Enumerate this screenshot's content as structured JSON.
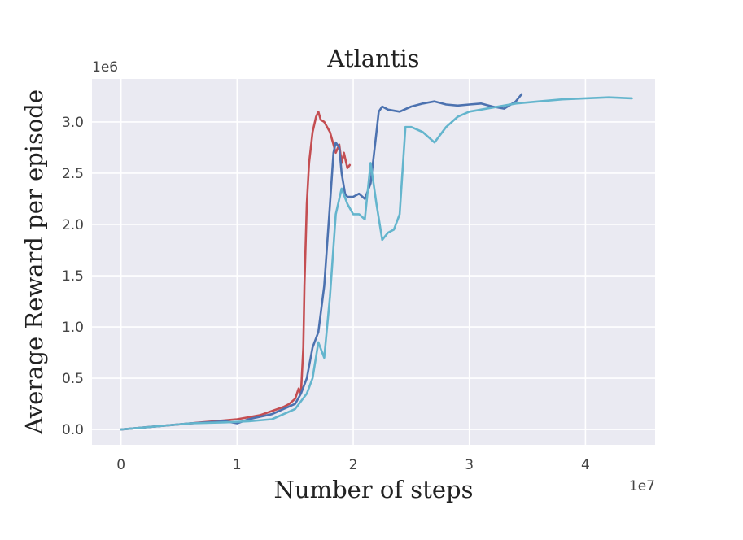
{
  "chart_data": {
    "type": "line",
    "title": "Atlantis",
    "xlabel": "Number of steps",
    "ylabel": "Average Reward per episode",
    "x_multiplier": "1e7",
    "y_multiplier": "1e6",
    "xlim": [
      -0.25,
      4.6
    ],
    "ylim": [
      -0.15,
      3.42
    ],
    "xticks": [
      0,
      1,
      2,
      3,
      4
    ],
    "xtick_labels": [
      "0",
      "1",
      "2",
      "3",
      "4"
    ],
    "yticks": [
      0.0,
      0.5,
      1.0,
      1.5,
      2.0,
      2.5,
      3.0
    ],
    "ytick_labels": [
      "0.0",
      "0.5",
      "1.0",
      "1.5",
      "2.0",
      "2.5",
      "3.0"
    ],
    "grid": true,
    "background": "#eaeaf2",
    "series": [
      {
        "color": "#c44e52",
        "x": [
          0,
          0.2,
          0.5,
          0.8,
          1.0,
          1.1,
          1.2,
          1.3,
          1.4,
          1.45,
          1.5,
          1.53,
          1.55,
          1.57,
          1.58,
          1.6,
          1.62,
          1.65,
          1.68,
          1.7,
          1.72,
          1.75,
          1.8,
          1.85,
          1.88,
          1.9,
          1.92,
          1.95,
          1.97
        ],
        "y": [
          0.0,
          0.02,
          0.05,
          0.08,
          0.1,
          0.12,
          0.14,
          0.18,
          0.22,
          0.25,
          0.3,
          0.4,
          0.35,
          0.8,
          1.4,
          2.2,
          2.6,
          2.9,
          3.05,
          3.1,
          3.02,
          3.0,
          2.9,
          2.7,
          2.78,
          2.6,
          2.7,
          2.55,
          2.58
        ]
      },
      {
        "color": "#4c72b0",
        "x": [
          0,
          0.3,
          0.6,
          0.9,
          1.0,
          1.1,
          1.3,
          1.5,
          1.55,
          1.6,
          1.65,
          1.7,
          1.75,
          1.8,
          1.83,
          1.85,
          1.88,
          1.9,
          1.93,
          1.95,
          2.0,
          2.05,
          2.1,
          2.15,
          2.2,
          2.22,
          2.25,
          2.3,
          2.4,
          2.5,
          2.6,
          2.7,
          2.8,
          2.9,
          3.0,
          3.1,
          3.2,
          3.3,
          3.4,
          3.45
        ],
        "y": [
          0.0,
          0.03,
          0.06,
          0.08,
          0.06,
          0.1,
          0.15,
          0.25,
          0.35,
          0.5,
          0.8,
          0.95,
          1.4,
          2.2,
          2.7,
          2.8,
          2.75,
          2.5,
          2.3,
          2.27,
          2.27,
          2.3,
          2.25,
          2.4,
          2.9,
          3.1,
          3.15,
          3.12,
          3.1,
          3.15,
          3.18,
          3.2,
          3.17,
          3.16,
          3.17,
          3.18,
          3.15,
          3.13,
          3.2,
          3.27
        ]
      },
      {
        "color": "#64b5cd",
        "x": [
          0,
          0.3,
          0.6,
          0.9,
          1.1,
          1.3,
          1.5,
          1.6,
          1.65,
          1.7,
          1.75,
          1.8,
          1.85,
          1.9,
          1.95,
          2.0,
          2.05,
          2.1,
          2.15,
          2.2,
          2.25,
          2.3,
          2.35,
          2.4,
          2.45,
          2.5,
          2.6,
          2.7,
          2.8,
          2.9,
          3.0,
          3.2,
          3.4,
          3.6,
          3.8,
          4.0,
          4.2,
          4.4
        ],
        "y": [
          0.0,
          0.03,
          0.06,
          0.07,
          0.08,
          0.1,
          0.2,
          0.35,
          0.5,
          0.85,
          0.7,
          1.3,
          2.1,
          2.35,
          2.2,
          2.1,
          2.1,
          2.05,
          2.6,
          2.2,
          1.85,
          1.92,
          1.95,
          2.1,
          2.95,
          2.95,
          2.9,
          2.8,
          2.95,
          3.05,
          3.1,
          3.14,
          3.18,
          3.2,
          3.22,
          3.23,
          3.24,
          3.23
        ]
      }
    ]
  }
}
